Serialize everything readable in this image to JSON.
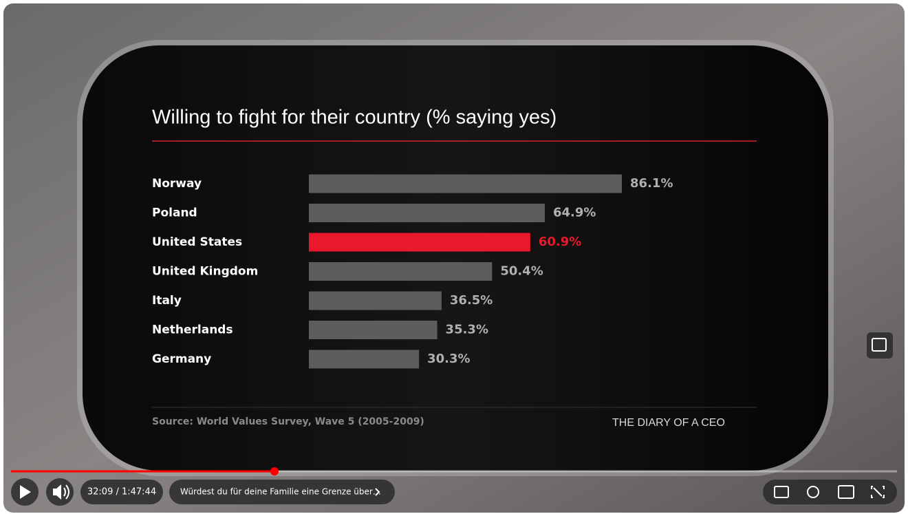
{
  "chart_data": {
    "type": "bar",
    "orientation": "horizontal",
    "title": "Willing to fight for their country (% saying yes)",
    "categories": [
      "Norway",
      "Poland",
      "United States",
      "United Kingdom",
      "Italy",
      "Netherlands",
      "Germany"
    ],
    "values": [
      86.1,
      64.9,
      60.9,
      50.4,
      36.5,
      35.3,
      30.3
    ],
    "value_labels": [
      "86.1%",
      "64.9%",
      "60.9%",
      "50.4%",
      "36.5%",
      "35.3%",
      "30.3%"
    ],
    "colors": [
      "#5d5d5d",
      "#5d5d5d",
      "#e8192c",
      "#5d5d5d",
      "#5d5d5d",
      "#5d5d5d",
      "#5d5d5d"
    ],
    "label_colors": [
      "#b0b0b0",
      "#b0b0b0",
      "#e8192c",
      "#b0b0b0",
      "#b0b0b0",
      "#b0b0b0",
      "#b0b0b0"
    ],
    "source": "Source: World Values Survey, Wave 5 (2005-2009)",
    "brand": "THE DIARY OF A CEO"
  },
  "player": {
    "time": "32:09 / 1:47:44",
    "chapter": "Würdest du für deine Familie eine Grenze über…"
  }
}
